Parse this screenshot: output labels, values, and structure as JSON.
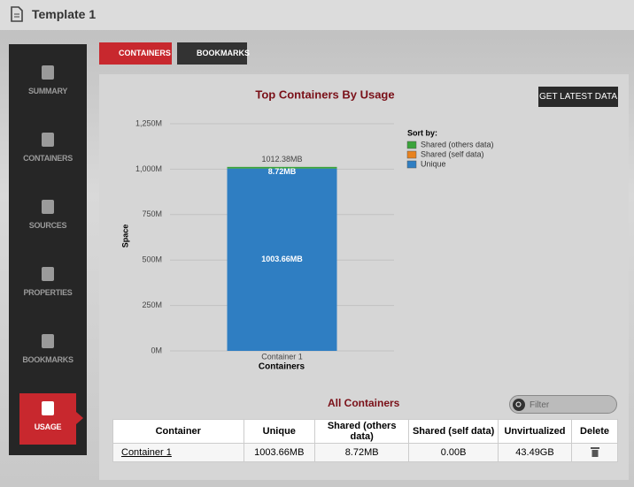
{
  "header": {
    "title": "Template 1"
  },
  "nav": [
    "SUMMARY",
    "CONTAINERS",
    "SOURCES",
    "PROPERTIES",
    "BOOKMARKS",
    "USAGE"
  ],
  "tabs": [
    "CONTAINERS",
    "BOOKMARKS"
  ],
  "button": "GET LATEST DATA",
  "chart_data": {
    "type": "stacked_bar",
    "title": "Top Containers By Usage",
    "y_label": "Space",
    "x_label": "Containers",
    "categories": [
      "Container 1"
    ],
    "legend_title": "Sort by:",
    "series": [
      {
        "name": "Unique",
        "color": "#2f7ec2",
        "values": [
          1003.66
        ],
        "value_labels": [
          "1003.66MB"
        ]
      },
      {
        "name": "Shared (self data)",
        "color": "#e8821e",
        "values": [
          0
        ]
      },
      {
        "name": "Shared (others data)",
        "color": "#3aa33a",
        "values": [
          8.72
        ],
        "value_labels": [
          "8.72MB"
        ]
      }
    ],
    "total_labels": [
      "1012.38MB"
    ],
    "ylim": [
      0,
      1250
    ],
    "yticks": [
      {
        "value": 0,
        "label": "0M"
      },
      {
        "value": 250,
        "label": "250M"
      },
      {
        "value": 500,
        "label": "500M"
      },
      {
        "value": 750,
        "label": "750M"
      },
      {
        "value": 1000,
        "label": "1,000M"
      },
      {
        "value": 1250,
        "label": "1,250M"
      }
    ],
    "grid": true
  },
  "table": {
    "title": "All Containers",
    "filter_placeholder": "Filter",
    "columns": [
      "Container",
      "Unique",
      "Shared (others data)",
      "Shared (self data)",
      "Unvirtualized",
      "Delete"
    ],
    "rows": [
      [
        "Container 1",
        "1003.66MB",
        "8.72MB",
        "0.00B",
        "43.49GB"
      ]
    ]
  }
}
